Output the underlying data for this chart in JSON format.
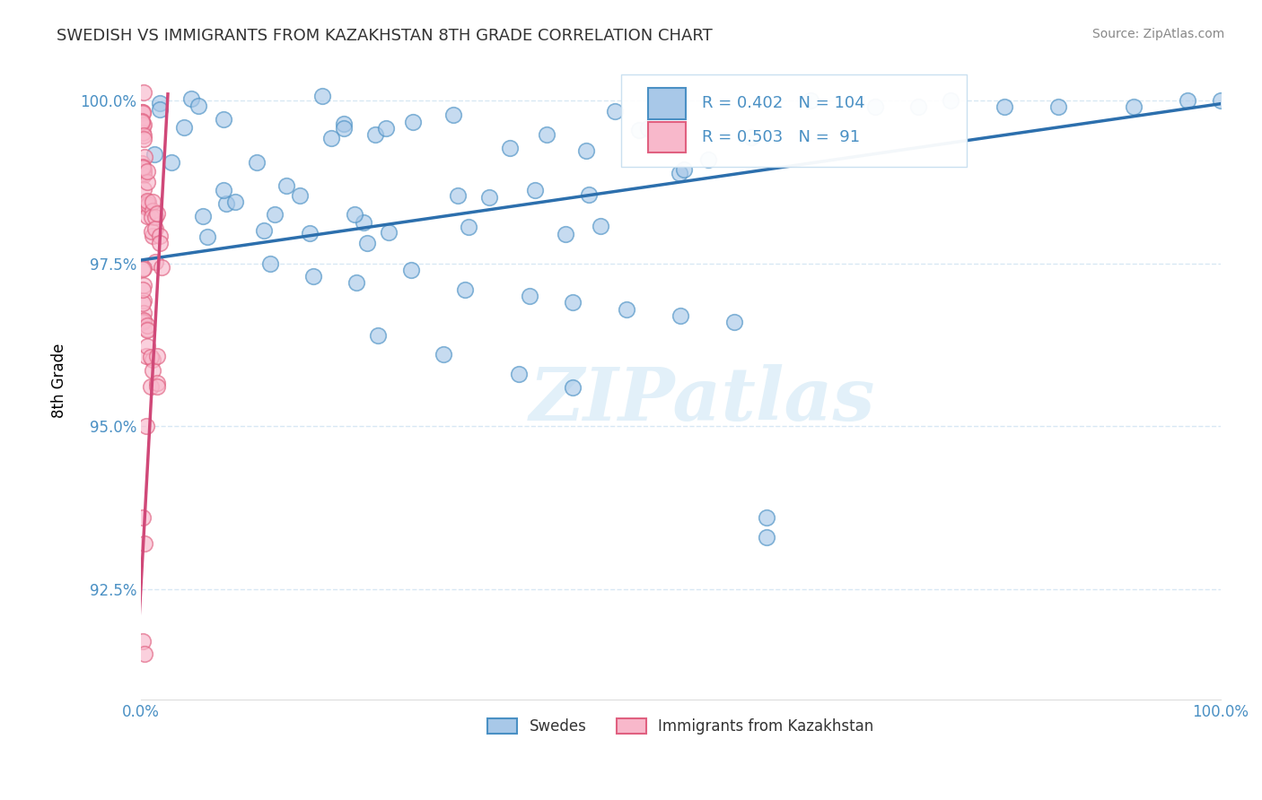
{
  "title": "SWEDISH VS IMMIGRANTS FROM KAZAKHSTAN 8TH GRADE CORRELATION CHART",
  "source": "Source: ZipAtlas.com",
  "ylabel": "8th Grade",
  "xlim": [
    0.0,
    1.0
  ],
  "ylim": [
    0.908,
    1.006
  ],
  "yticks": [
    0.925,
    0.95,
    0.975,
    1.0
  ],
  "ytick_labels": [
    "92.5%",
    "95.0%",
    "97.5%",
    "100.0%"
  ],
  "legend_labels": [
    "Swedes",
    "Immigrants from Kazakhstan"
  ],
  "blue_color": "#a8c8e8",
  "blue_edge_color": "#4a90c4",
  "pink_color": "#f8b8cb",
  "pink_edge_color": "#e06080",
  "trend_blue_color": "#2c6fad",
  "trend_pink_color": "#d04878",
  "axis_label_color": "#4a90c4",
  "grid_color": "#c8dff0",
  "R_blue": 0.402,
  "N_blue": 104,
  "R_pink": 0.503,
  "N_pink": 91,
  "watermark_text": "ZIPatlas",
  "title_fontsize": 13,
  "tick_fontsize": 12
}
